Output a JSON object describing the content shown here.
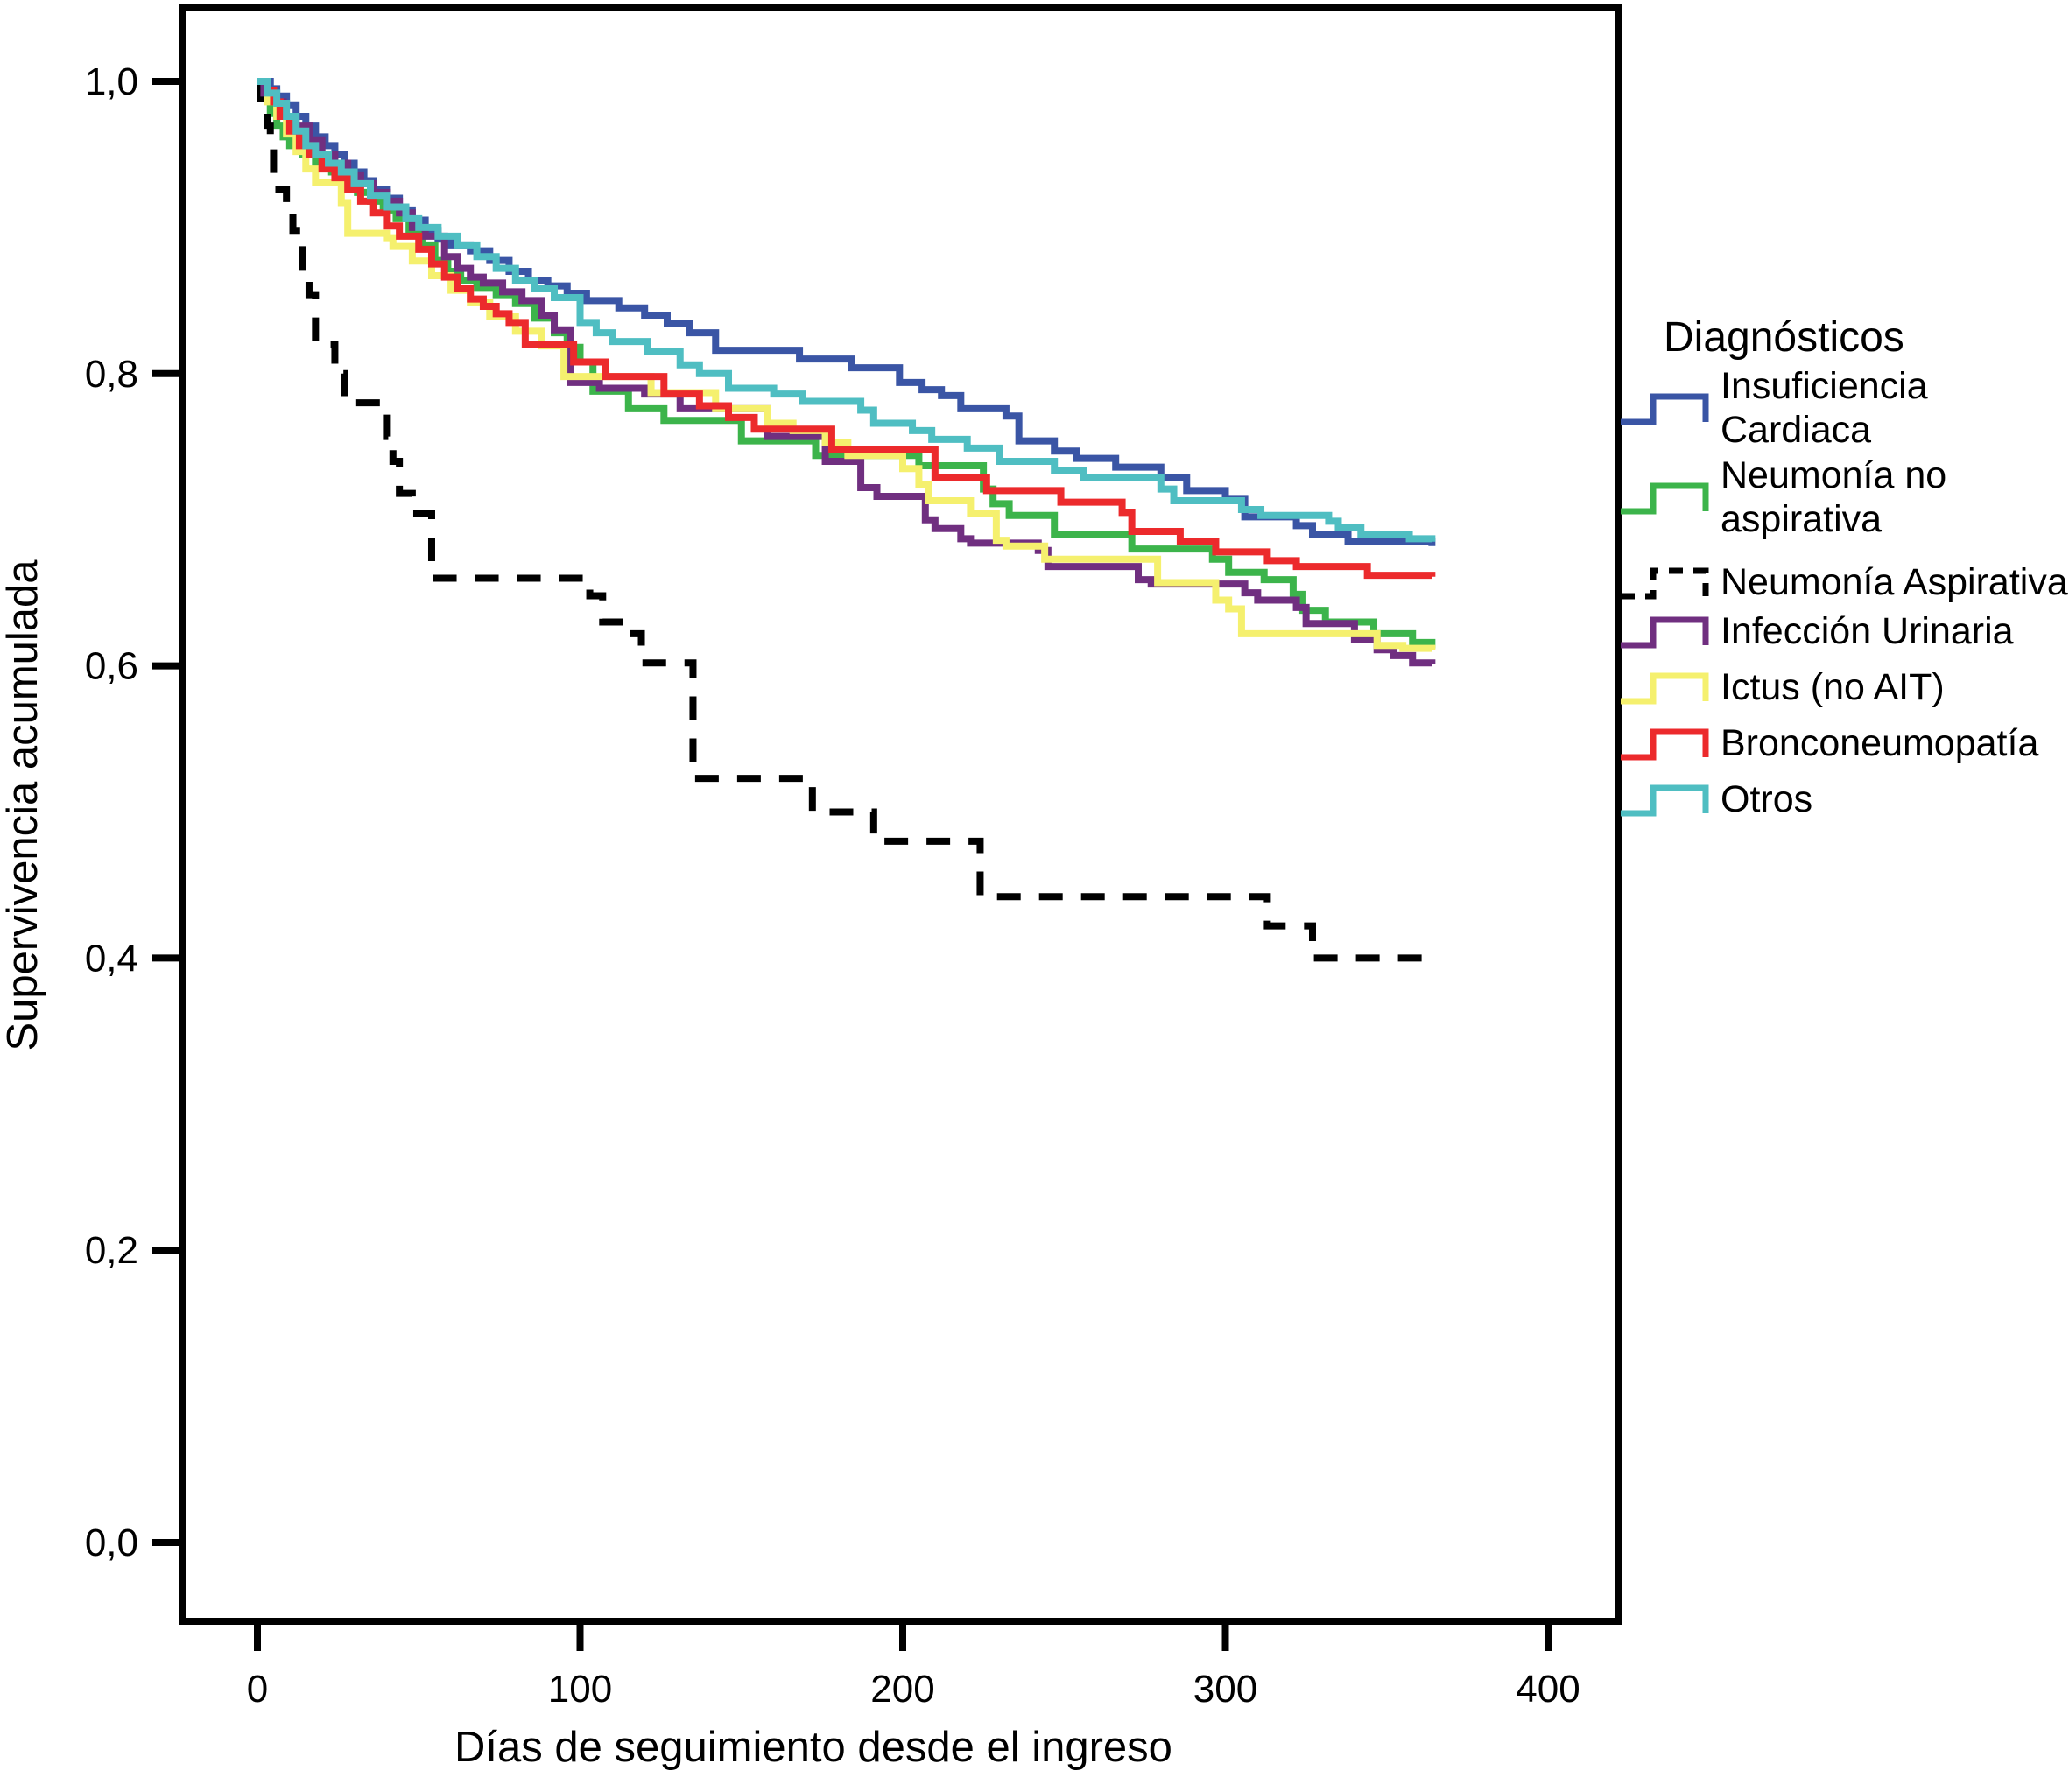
{
  "figure": {
    "background": "#ffffff",
    "frame_color": "#000000"
  },
  "legend": {
    "title": "Diagnósticos"
  },
  "chart_data": {
    "type": "line",
    "subtype": "kaplan-meier-step",
    "title": "",
    "xlabel": "Días de seguimiento desde el ingreso",
    "ylabel": "Supervivencia acumulada",
    "xlim": [
      -23,
      422
    ],
    "ylim": [
      -0.054,
      1.051
    ],
    "x_ticks": [
      0,
      100,
      200,
      300,
      400
    ],
    "x_tick_labels": [
      "0",
      "100",
      "200",
      "300",
      "400"
    ],
    "y_ticks": [
      0.0,
      0.2,
      0.4,
      0.6,
      0.8,
      1.0
    ],
    "y_tick_labels": [
      "0,0",
      "0,2",
      "0,4",
      "0,6",
      "0,8",
      "1,0"
    ],
    "grid": false,
    "legend_position": "right",
    "legend_title": "Diagnósticos",
    "series": [
      {
        "name": "Insuficiencia Cardiaca",
        "color": "#3A55A5",
        "dashed": false,
        "points": [
          [
            0,
            1.0
          ],
          [
            4,
            0.995
          ],
          [
            6,
            0.99
          ],
          [
            9,
            0.984
          ],
          [
            12,
            0.976
          ],
          [
            15,
            0.97
          ],
          [
            18,
            0.962
          ],
          [
            21,
            0.956
          ],
          [
            24,
            0.95
          ],
          [
            27,
            0.944
          ],
          [
            30,
            0.938
          ],
          [
            33,
            0.932
          ],
          [
            36,
            0.926
          ],
          [
            40,
            0.92
          ],
          [
            44,
            0.912
          ],
          [
            48,
            0.905
          ],
          [
            52,
            0.898
          ],
          [
            56,
            0.892
          ],
          [
            60,
            0.888
          ],
          [
            66,
            0.884
          ],
          [
            72,
            0.878
          ],
          [
            78,
            0.87
          ],
          [
            84,
            0.864
          ],
          [
            90,
            0.86
          ],
          [
            96,
            0.855
          ],
          [
            102,
            0.85
          ],
          [
            112,
            0.845
          ],
          [
            120,
            0.84
          ],
          [
            127,
            0.834
          ],
          [
            134,
            0.828
          ],
          [
            142,
            0.816
          ],
          [
            168,
            0.81
          ],
          [
            184,
            0.804
          ],
          [
            199,
            0.794
          ],
          [
            206,
            0.789
          ],
          [
            212,
            0.785
          ],
          [
            218,
            0.776
          ],
          [
            232,
            0.771
          ],
          [
            236,
            0.754
          ],
          [
            247,
            0.747
          ],
          [
            254,
            0.742
          ],
          [
            266,
            0.736
          ],
          [
            280,
            0.729
          ],
          [
            288,
            0.72
          ],
          [
            300,
            0.714
          ],
          [
            306,
            0.702
          ],
          [
            322,
            0.696
          ],
          [
            327,
            0.69
          ],
          [
            338,
            0.685
          ],
          [
            364,
            0.682
          ]
        ]
      },
      {
        "name": "Neumonía no aspirativa",
        "color": "#3CB44B",
        "dashed": false,
        "points": [
          [
            0,
            1.0
          ],
          [
            2,
            0.988
          ],
          [
            4,
            0.978
          ],
          [
            6,
            0.97
          ],
          [
            8,
            0.962
          ],
          [
            10,
            0.956
          ],
          [
            14,
            0.95
          ],
          [
            18,
            0.944
          ],
          [
            23,
            0.938
          ],
          [
            27,
            0.93
          ],
          [
            31,
            0.924
          ],
          [
            35,
            0.918
          ],
          [
            39,
            0.912
          ],
          [
            43,
            0.906
          ],
          [
            47,
            0.898
          ],
          [
            51,
            0.888
          ],
          [
            55,
            0.878
          ],
          [
            59,
            0.87
          ],
          [
            63,
            0.864
          ],
          [
            68,
            0.859
          ],
          [
            74,
            0.854
          ],
          [
            80,
            0.848
          ],
          [
            86,
            0.838
          ],
          [
            92,
            0.828
          ],
          [
            96,
            0.818
          ],
          [
            100,
            0.808
          ],
          [
            104,
            0.788
          ],
          [
            115,
            0.776
          ],
          [
            126,
            0.768
          ],
          [
            150,
            0.754
          ],
          [
            173,
            0.744
          ],
          [
            205,
            0.737
          ],
          [
            225,
            0.721
          ],
          [
            228,
            0.711
          ],
          [
            233,
            0.703
          ],
          [
            247,
            0.69
          ],
          [
            271,
            0.68
          ],
          [
            296,
            0.673
          ],
          [
            301,
            0.664
          ],
          [
            312,
            0.659
          ],
          [
            321,
            0.649
          ],
          [
            324,
            0.638
          ],
          [
            331,
            0.63
          ],
          [
            346,
            0.622
          ],
          [
            358,
            0.616
          ],
          [
            364,
            0.612
          ]
        ]
      },
      {
        "name": "Neumonía Aspirativa",
        "color": "#000000",
        "dashed": true,
        "points": [
          [
            0,
            1.0
          ],
          [
            1,
            0.986
          ],
          [
            3,
            0.97
          ],
          [
            4,
            0.955
          ],
          [
            5,
            0.926
          ],
          [
            9,
            0.912
          ],
          [
            11,
            0.898
          ],
          [
            14,
            0.87
          ],
          [
            16,
            0.854
          ],
          [
            18,
            0.82
          ],
          [
            24,
            0.8
          ],
          [
            27,
            0.78
          ],
          [
            40,
            0.757
          ],
          [
            42,
            0.74
          ],
          [
            44,
            0.718
          ],
          [
            48,
            0.704
          ],
          [
            54,
            0.66
          ],
          [
            103,
            0.648
          ],
          [
            107,
            0.63
          ],
          [
            114,
            0.622
          ],
          [
            119,
            0.602
          ],
          [
            135,
            0.523
          ],
          [
            172,
            0.5
          ],
          [
            191,
            0.48
          ],
          [
            224,
            0.442
          ],
          [
            313,
            0.422
          ],
          [
            327,
            0.4
          ],
          [
            364,
            0.4
          ]
        ]
      },
      {
        "name": "Infección Urinaria",
        "color": "#702F80",
        "dashed": false,
        "points": [
          [
            0,
            1.0
          ],
          [
            2,
            0.992
          ],
          [
            5,
            0.986
          ],
          [
            8,
            0.976
          ],
          [
            12,
            0.97
          ],
          [
            16,
            0.96
          ],
          [
            20,
            0.95
          ],
          [
            24,
            0.944
          ],
          [
            28,
            0.936
          ],
          [
            32,
            0.93
          ],
          [
            36,
            0.924
          ],
          [
            40,
            0.918
          ],
          [
            44,
            0.91
          ],
          [
            48,
            0.9
          ],
          [
            52,
            0.894
          ],
          [
            58,
            0.88
          ],
          [
            62,
            0.872
          ],
          [
            66,
            0.866
          ],
          [
            70,
            0.862
          ],
          [
            76,
            0.856
          ],
          [
            82,
            0.85
          ],
          [
            88,
            0.84
          ],
          [
            92,
            0.83
          ],
          [
            97,
            0.794
          ],
          [
            106,
            0.79
          ],
          [
            120,
            0.786
          ],
          [
            131,
            0.776
          ],
          [
            158,
            0.757
          ],
          [
            176,
            0.74
          ],
          [
            187,
            0.722
          ],
          [
            192,
            0.716
          ],
          [
            207,
            0.7
          ],
          [
            210,
            0.694
          ],
          [
            218,
            0.687
          ],
          [
            221,
            0.684
          ],
          [
            242,
            0.679
          ],
          [
            245,
            0.668
          ],
          [
            273,
            0.659
          ],
          [
            277,
            0.656
          ],
          [
            306,
            0.65
          ],
          [
            310,
            0.645
          ],
          [
            322,
            0.64
          ],
          [
            325,
            0.629
          ],
          [
            340,
            0.618
          ],
          [
            347,
            0.611
          ],
          [
            352,
            0.607
          ],
          [
            358,
            0.602
          ],
          [
            364,
            0.601
          ]
        ]
      },
      {
        "name": "Ictus (no AIT)",
        "color": "#F5F06E",
        "dashed": false,
        "points": [
          [
            0,
            1.0
          ],
          [
            3,
            0.986
          ],
          [
            6,
            0.976
          ],
          [
            9,
            0.964
          ],
          [
            12,
            0.952
          ],
          [
            15,
            0.94
          ],
          [
            18,
            0.931
          ],
          [
            26,
            0.917
          ],
          [
            28,
            0.896
          ],
          [
            40,
            0.893
          ],
          [
            42,
            0.887
          ],
          [
            48,
            0.877
          ],
          [
            54,
            0.867
          ],
          [
            60,
            0.857
          ],
          [
            66,
            0.849
          ],
          [
            72,
            0.839
          ],
          [
            80,
            0.829
          ],
          [
            88,
            0.819
          ],
          [
            95,
            0.798
          ],
          [
            122,
            0.787
          ],
          [
            142,
            0.776
          ],
          [
            158,
            0.766
          ],
          [
            166,
            0.761
          ],
          [
            176,
            0.753
          ],
          [
            183,
            0.744
          ],
          [
            200,
            0.735
          ],
          [
            205,
            0.724
          ],
          [
            208,
            0.713
          ],
          [
            221,
            0.704
          ],
          [
            229,
            0.686
          ],
          [
            232,
            0.682
          ],
          [
            244,
            0.673
          ],
          [
            279,
            0.657
          ],
          [
            297,
            0.645
          ],
          [
            301,
            0.639
          ],
          [
            305,
            0.622
          ],
          [
            347,
            0.614
          ],
          [
            355,
            0.612
          ],
          [
            364,
            0.611
          ]
        ]
      },
      {
        "name": "Bronconeumopatía",
        "color": "#EC2A2C",
        "dashed": false,
        "points": [
          [
            0,
            1.0
          ],
          [
            3,
            0.994
          ],
          [
            5,
            0.986
          ],
          [
            7,
            0.976
          ],
          [
            10,
            0.966
          ],
          [
            13,
            0.956
          ],
          [
            16,
            0.95
          ],
          [
            20,
            0.94
          ],
          [
            24,
            0.934
          ],
          [
            28,
            0.926
          ],
          [
            32,
            0.918
          ],
          [
            36,
            0.91
          ],
          [
            40,
            0.901
          ],
          [
            44,
            0.894
          ],
          [
            50,
            0.885
          ],
          [
            54,
            0.875
          ],
          [
            58,
            0.866
          ],
          [
            62,
            0.858
          ],
          [
            66,
            0.851
          ],
          [
            70,
            0.846
          ],
          [
            74,
            0.841
          ],
          [
            78,
            0.835
          ],
          [
            83,
            0.82
          ],
          [
            98,
            0.808
          ],
          [
            108,
            0.798
          ],
          [
            126,
            0.786
          ],
          [
            137,
            0.778
          ],
          [
            146,
            0.77
          ],
          [
            154,
            0.762
          ],
          [
            178,
            0.748
          ],
          [
            210,
            0.729
          ],
          [
            226,
            0.72
          ],
          [
            249,
            0.712
          ],
          [
            268,
            0.705
          ],
          [
            271,
            0.692
          ],
          [
            286,
            0.685
          ],
          [
            297,
            0.678
          ],
          [
            313,
            0.672
          ],
          [
            322,
            0.668
          ],
          [
            344,
            0.662
          ],
          [
            364,
            0.661
          ]
        ]
      },
      {
        "name": "Otros",
        "color": "#4FBEC2",
        "dashed": false,
        "points": [
          [
            0,
            1.0
          ],
          [
            3,
            0.992
          ],
          [
            6,
            0.985
          ],
          [
            9,
            0.976
          ],
          [
            12,
            0.966
          ],
          [
            15,
            0.956
          ],
          [
            18,
            0.95
          ],
          [
            22,
            0.944
          ],
          [
            26,
            0.938
          ],
          [
            30,
            0.93
          ],
          [
            35,
            0.922
          ],
          [
            40,
            0.914
          ],
          [
            46,
            0.906
          ],
          [
            50,
            0.9
          ],
          [
            56,
            0.894
          ],
          [
            62,
            0.888
          ],
          [
            68,
            0.88
          ],
          [
            74,
            0.872
          ],
          [
            80,
            0.864
          ],
          [
            86,
            0.858
          ],
          [
            92,
            0.852
          ],
          [
            100,
            0.835
          ],
          [
            105,
            0.828
          ],
          [
            110,
            0.822
          ],
          [
            121,
            0.815
          ],
          [
            131,
            0.806
          ],
          [
            137,
            0.8
          ],
          [
            146,
            0.79
          ],
          [
            160,
            0.786
          ],
          [
            169,
            0.781
          ],
          [
            187,
            0.775
          ],
          [
            191,
            0.766
          ],
          [
            203,
            0.761
          ],
          [
            209,
            0.755
          ],
          [
            220,
            0.749
          ],
          [
            230,
            0.74
          ],
          [
            247,
            0.734
          ],
          [
            256,
            0.729
          ],
          [
            280,
            0.721
          ],
          [
            284,
            0.713
          ],
          [
            305,
            0.707
          ],
          [
            311,
            0.703
          ],
          [
            332,
            0.699
          ],
          [
            335,
            0.695
          ],
          [
            342,
            0.69
          ],
          [
            357,
            0.687
          ],
          [
            364,
            0.685
          ]
        ]
      }
    ]
  }
}
